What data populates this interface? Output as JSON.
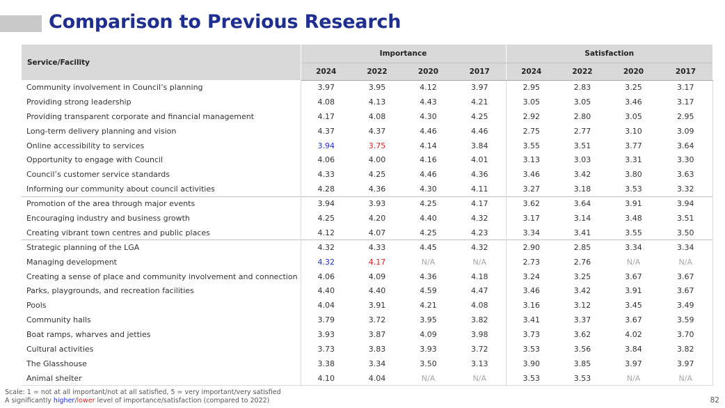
{
  "title": "Comparison to Previous Research",
  "table": {
    "service_header": "Service/Facility",
    "importance_header": "Importance",
    "satisfaction_header": "Satisfaction",
    "years": [
      "2024",
      "2022",
      "2020",
      "2017"
    ],
    "rows": [
      {
        "label": "Community involvement in Council’s planning",
        "imp": [
          "3.97",
          "3.95",
          "4.12",
          "3.97"
        ],
        "sat": [
          "2.95",
          "2.83",
          "3.25",
          "3.17"
        ]
      },
      {
        "label": "Providing strong leadership",
        "imp": [
          "4.08",
          "4.13",
          "4.43",
          "4.21"
        ],
        "sat": [
          "3.05",
          "3.05",
          "3.46",
          "3.17"
        ]
      },
      {
        "label": "Providing transparent corporate and financial management",
        "imp": [
          "4.17",
          "4.08",
          "4.30",
          "4.25"
        ],
        "sat": [
          "2.92",
          "2.80",
          "3.05",
          "2.95"
        ]
      },
      {
        "label": "Long-term delivery planning and vision",
        "imp": [
          "4.37",
          "4.37",
          "4.46",
          "4.46"
        ],
        "sat": [
          "2.75",
          "2.77",
          "3.10",
          "3.09"
        ]
      },
      {
        "label": "Online accessibility to services",
        "imp": [
          "3.94",
          "3.75",
          "4.14",
          "3.84"
        ],
        "sat": [
          "3.55",
          "3.51",
          "3.77",
          "3.64"
        ],
        "imp_flags": [
          "higher",
          "lower",
          "",
          ""
        ]
      },
      {
        "label": "Opportunity to engage with Council",
        "imp": [
          "4.06",
          "4.00",
          "4.16",
          "4.01"
        ],
        "sat": [
          "3.13",
          "3.03",
          "3.31",
          "3.30"
        ]
      },
      {
        "label": "Council’s customer service standards",
        "imp": [
          "4.33",
          "4.25",
          "4.46",
          "4.36"
        ],
        "sat": [
          "3.46",
          "3.42",
          "3.80",
          "3.63"
        ]
      },
      {
        "label": "Informing our community about council activities",
        "imp": [
          "4.28",
          "4.36",
          "4.30",
          "4.11"
        ],
        "sat": [
          "3.27",
          "3.18",
          "3.53",
          "3.32"
        ]
      },
      {
        "label": "Promotion of the area through major events",
        "imp": [
          "3.94",
          "3.93",
          "4.25",
          "4.17"
        ],
        "sat": [
          "3.62",
          "3.64",
          "3.91",
          "3.94"
        ],
        "group_start": true
      },
      {
        "label": "Encouraging industry and business growth",
        "imp": [
          "4.25",
          "4.20",
          "4.40",
          "4.32"
        ],
        "sat": [
          "3.17",
          "3.14",
          "3.48",
          "3.51"
        ]
      },
      {
        "label": "Creating vibrant town centres and public places",
        "imp": [
          "4.12",
          "4.07",
          "4.25",
          "4.23"
        ],
        "sat": [
          "3.34",
          "3.41",
          "3.55",
          "3.50"
        ]
      },
      {
        "label": "Strategic planning of the LGA",
        "imp": [
          "4.32",
          "4.33",
          "4.45",
          "4.32"
        ],
        "sat": [
          "2.90",
          "2.85",
          "3.34",
          "3.34"
        ],
        "group_start": true
      },
      {
        "label": "Managing development",
        "imp": [
          "4.32",
          "4.17",
          "N/A",
          "N/A"
        ],
        "sat": [
          "2.73",
          "2.76",
          "N/A",
          "N/A"
        ],
        "imp_flags": [
          "higher",
          "lower",
          "",
          ""
        ]
      },
      {
        "label": "Creating a sense of place and community involvement and connection",
        "imp": [
          "4.06",
          "4.09",
          "4.36",
          "4.18"
        ],
        "sat": [
          "3.24",
          "3.25",
          "3.67",
          "3.67"
        ]
      },
      {
        "label": "Parks, playgrounds, and recreation facilities",
        "imp": [
          "4.40",
          "4.40",
          "4.59",
          "4.47"
        ],
        "sat": [
          "3.46",
          "3.42",
          "3.91",
          "3.67"
        ]
      },
      {
        "label": "Pools",
        "imp": [
          "4.04",
          "3.91",
          "4.21",
          "4.08"
        ],
        "sat": [
          "3.16",
          "3.12",
          "3.45",
          "3.49"
        ]
      },
      {
        "label": "Community halls",
        "imp": [
          "3.79",
          "3.72",
          "3.95",
          "3.82"
        ],
        "sat": [
          "3.41",
          "3.37",
          "3.67",
          "3.59"
        ]
      },
      {
        "label": "Boat ramps, wharves and jetties",
        "imp": [
          "3.93",
          "3.87",
          "4.09",
          "3.98"
        ],
        "sat": [
          "3.73",
          "3.62",
          "4.02",
          "3.70"
        ]
      },
      {
        "label": "Cultural activities",
        "imp": [
          "3.73",
          "3.83",
          "3.93",
          "3.72"
        ],
        "sat": [
          "3.53",
          "3.56",
          "3.84",
          "3.82"
        ]
      },
      {
        "label": "The Glasshouse",
        "imp": [
          "3.38",
          "3.34",
          "3.50",
          "3.13"
        ],
        "sat": [
          "3.90",
          "3.85",
          "3.97",
          "3.97"
        ]
      },
      {
        "label": "Animal shelter",
        "imp": [
          "4.10",
          "4.04",
          "N/A",
          "N/A"
        ],
        "sat": [
          "3.53",
          "3.53",
          "N/A",
          "N/A"
        ]
      }
    ]
  },
  "footnote": {
    "scale": "Scale: 1 = not at all important/not at all satisfied, 5 = very important/very satisfied",
    "sig_prefix": "A significantly ",
    "sig_higher": "higher",
    "sig_sep": "/",
    "sig_lower": "lower",
    "sig_suffix": " level of importance/satisfaction (compared to 2022)"
  },
  "page_number": "82",
  "colors": {
    "title": "#1f2f8f",
    "header_bg": "#d9d9d9",
    "higher": "#1f2fd6",
    "lower": "#e02020",
    "na": "#a6a6a6"
  }
}
